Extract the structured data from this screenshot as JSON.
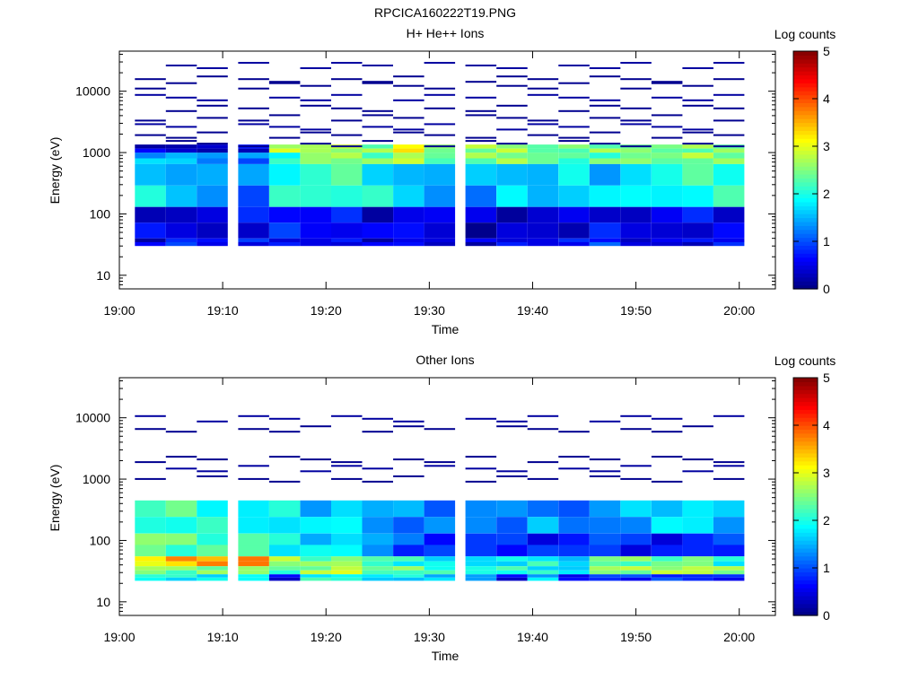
{
  "figure_title": "RPCICA160222T19.PNG",
  "chart_data": [
    {
      "type": "heatmap",
      "title": "H+ He++ Ions",
      "xlabel": "Time",
      "ylabel": "Energy (eV)",
      "x_ticks": [
        "19:00",
        "19:10",
        "19:20",
        "19:30",
        "19:40",
        "19:50",
        "20:00"
      ],
      "y_ticks": [
        "10",
        "100",
        "1000",
        "10000"
      ],
      "y_scale": "log",
      "ylim": [
        6,
        45000
      ],
      "colorbar": {
        "label": "Log counts",
        "range": [
          0,
          5
        ],
        "ticks": [
          "0",
          "1",
          "2",
          "3",
          "4",
          "5"
        ]
      },
      "time_bins": [
        "19:03",
        "19:06",
        "19:09",
        "19:13",
        "19:16",
        "19:19",
        "19:22",
        "19:25",
        "19:28",
        "19:31",
        "19:35",
        "19:38",
        "19:41",
        "19:44",
        "19:47",
        "19:50",
        "19:53",
        "19:56",
        "19:59"
      ],
      "bands": [
        {
          "energy": [
            650,
            1000
          ],
          "values": [
            1.5,
            1.6,
            1.3,
            1.2,
            2.0,
            2.6,
            2.6,
            2.4,
            2.8,
            2.3,
            2.5,
            2.6,
            2.4,
            2.2,
            2.3,
            2.5,
            2.4,
            2.6,
            2.5
          ]
        },
        {
          "energy": [
            1000,
            1350
          ],
          "values": [
            0.4,
            0.3,
            0.3,
            0.5,
            2.8,
            2.7,
            2.7,
            2.5,
            3.2,
            2.5,
            2.6,
            2.7,
            2.3,
            2.4,
            2.5,
            2.5,
            2.4,
            2.5,
            2.5
          ]
        },
        {
          "energy": [
            130,
            650
          ],
          "values": [
            1.8,
            1.5,
            1.4,
            1.2,
            2.0,
            2.1,
            2.2,
            1.9,
            1.6,
            1.4,
            1.4,
            1.7,
            1.5,
            1.8,
            1.6,
            1.8,
            1.9,
            2.1,
            2.1
          ]
        },
        {
          "energy": [
            40,
            130
          ],
          "values": [
            0.5,
            0.4,
            0.4,
            0.6,
            0.8,
            0.6,
            0.7,
            0.4,
            0.6,
            0.5,
            0.3,
            0.3,
            0.4,
            0.4,
            0.6,
            0.4,
            0.5,
            0.6,
            0.5
          ]
        },
        {
          "energy": [
            30,
            40
          ],
          "values": [
            0.4,
            0.9,
            0.6,
            0.7,
            0.6,
            0.5,
            0.6,
            0.4,
            0.6,
            0.4,
            0.4,
            0.6,
            0.5,
            0.7,
            0.9,
            0.4,
            0.5,
            0.5,
            0.7
          ]
        }
      ]
    },
    {
      "type": "heatmap",
      "title": "Other Ions",
      "xlabel": "Time",
      "ylabel": "Energy (eV)",
      "x_ticks": [
        "19:00",
        "19:10",
        "19:20",
        "19:30",
        "19:40",
        "19:50",
        "20:00"
      ],
      "y_ticks": [
        "10",
        "100",
        "1000",
        "10000"
      ],
      "y_scale": "log",
      "ylim": [
        6,
        45000
      ],
      "colorbar": {
        "label": "Log counts",
        "range": [
          0,
          5
        ],
        "ticks": [
          "0",
          "1",
          "2",
          "3",
          "4",
          "5"
        ]
      },
      "time_bins": [
        "19:03",
        "19:06",
        "19:09",
        "19:13",
        "19:16",
        "19:19",
        "19:22",
        "19:25",
        "19:28",
        "19:31",
        "19:35",
        "19:38",
        "19:41",
        "19:44",
        "19:47",
        "19:50",
        "19:53",
        "19:56",
        "19:59"
      ],
      "bands": [
        {
          "energy": [
            130,
            450
          ],
          "values": [
            2.1,
            2.2,
            2.0,
            1.8,
            1.9,
            1.6,
            1.8,
            1.4,
            1.3,
            1.2,
            1.3,
            1.2,
            1.4,
            1.1,
            1.3,
            1.5,
            1.7,
            1.8,
            1.5
          ]
        },
        {
          "energy": [
            55,
            130
          ],
          "values": [
            2.5,
            2.3,
            2.2,
            2.3,
            1.9,
            1.7,
            1.8,
            1.4,
            1.0,
            0.8,
            0.9,
            0.8,
            0.7,
            0.8,
            1.0,
            0.7,
            0.6,
            0.8,
            0.9
          ]
        },
        {
          "energy": [
            38,
            55
          ],
          "values": [
            3.1,
            3.5,
            3.6,
            3.8,
            2.7,
            2.4,
            2.6,
            2.2,
            2.0,
            1.8,
            1.7,
            1.8,
            2.0,
            1.6,
            2.4,
            2.4,
            2.3,
            2.5,
            1.9
          ]
        },
        {
          "energy": [
            28,
            38
          ],
          "values": [
            2.6,
            2.4,
            2.5,
            2.6,
            2.2,
            2.6,
            2.9,
            2.3,
            2.4,
            2.1,
            2.0,
            2.1,
            1.9,
            1.7,
            2.6,
            2.6,
            2.7,
            2.8,
            2.6
          ]
        },
        {
          "energy": [
            22,
            28
          ],
          "values": [
            2.0,
            1.9,
            1.8,
            1.9,
            0.5,
            2.0,
            2.0,
            1.7,
            1.8,
            1.6,
            1.4,
            0.5,
            1.6,
            0.6,
            0.9,
            0.8,
            0.9,
            0.8,
            0.7
          ]
        }
      ]
    }
  ]
}
